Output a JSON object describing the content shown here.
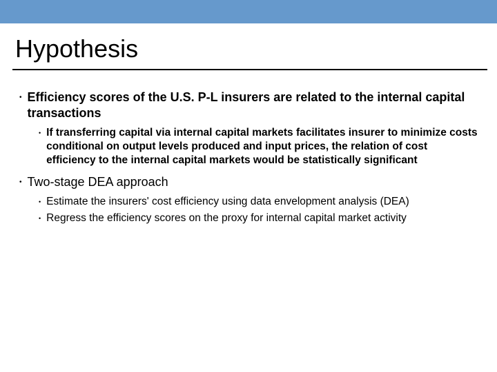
{
  "colors": {
    "top_bar": "#6699cc",
    "divider": "#000000",
    "text": "#000000",
    "background": "#ffffff"
  },
  "typography": {
    "title_fontsize": 36,
    "l1_fontsize": 18,
    "l2_fontsize": 15.5,
    "font_family": "Arial"
  },
  "title": "Hypothesis",
  "bullets": {
    "b1": {
      "text": "Efficiency scores of the U.S. P-L insurers are related to the internal capital transactions",
      "bold": true,
      "children": {
        "c1": "If transferring capital via internal capital markets facilitates insurer to minimize costs conditional on output levels produced and input prices, the relation of cost efficiency to the internal capital markets  would be statistically significant"
      }
    },
    "b2": {
      "text": "Two-stage DEA approach",
      "bold": false,
      "children": {
        "c1": "Estimate the insurers' cost efficiency using data envelopment analysis (DEA)",
        "c2": "Regress the efficiency scores on the proxy for internal capital market activity"
      }
    }
  }
}
